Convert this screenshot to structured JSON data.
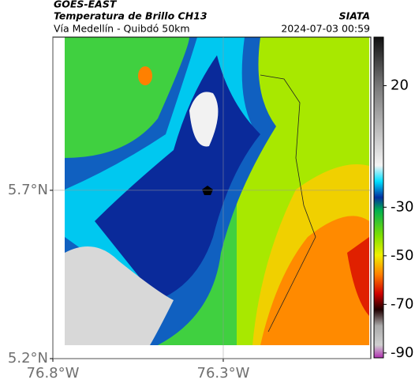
{
  "header": {
    "title": "GOES-EAST",
    "subtitle": "Temperatura de Brillo CH13",
    "location": "Vía Medellín - Quibdó 50km",
    "source": "SIATA",
    "datetime": "2024-07-03 00:59"
  },
  "map": {
    "xlim": [
      -76.8,
      -75.867
    ],
    "ylim": [
      5.2,
      6.155
    ],
    "xticks": [
      {
        "value": -76.8,
        "label": "76.8°W"
      },
      {
        "value": -76.3,
        "label": "76.3°W"
      }
    ],
    "yticks": [
      {
        "value": 5.2,
        "label": "5.2°N"
      },
      {
        "value": 5.7,
        "label": "5.7°N"
      }
    ]
  },
  "colorbar": {
    "lim": [
      -92,
      40
    ],
    "ticks": [
      20,
      -30,
      -50,
      -70,
      -90
    ]
  }
}
